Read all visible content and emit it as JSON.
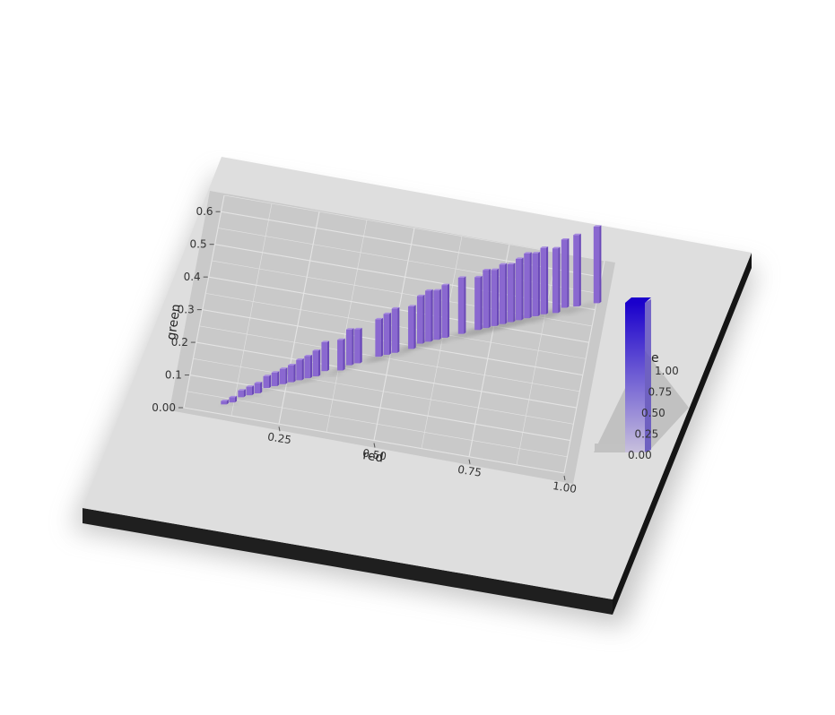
{
  "chart_data": {
    "type": "bar",
    "rendering": "3d",
    "xlabel": "red",
    "ylabel": "green",
    "legend_title": "e",
    "xlim": [
      0,
      1
    ],
    "ylim": [
      0,
      0.65
    ],
    "x_ticks": [
      "0.25",
      "0.50",
      "0.75",
      "1.00"
    ],
    "y_ticks": [
      "0.00",
      "0.1",
      "0.2",
      "0.3",
      "0.4",
      "0.5",
      "0.6"
    ],
    "legend_ticks": [
      "0.00",
      "0.25",
      "0.50",
      "0.75",
      "1.00"
    ],
    "legend_range": [
      0,
      1
    ],
    "legend_placement": "right",
    "grid": true,
    "colors": {
      "panel": "#c9c9c9",
      "plate": "#dedede",
      "plate_edge": "#1f1f1f",
      "bar": "#8a68d0",
      "bar_light": "#a88ce0",
      "bar_dark": "#6a48b8",
      "legend_low": "#c8c0dc",
      "legend_high": "#1a00cc"
    },
    "points": [
      {
        "x": 0.1,
        "y": 0.03,
        "value": 0.02
      },
      {
        "x": 0.12,
        "y": 0.04,
        "value": 0.03
      },
      {
        "x": 0.14,
        "y": 0.06,
        "value": 0.04
      },
      {
        "x": 0.16,
        "y": 0.07,
        "value": 0.05
      },
      {
        "x": 0.18,
        "y": 0.08,
        "value": 0.06
      },
      {
        "x": 0.2,
        "y": 0.1,
        "value": 0.07
      },
      {
        "x": 0.22,
        "y": 0.11,
        "value": 0.08
      },
      {
        "x": 0.24,
        "y": 0.12,
        "value": 0.09
      },
      {
        "x": 0.26,
        "y": 0.13,
        "value": 0.1
      },
      {
        "x": 0.28,
        "y": 0.14,
        "value": 0.12
      },
      {
        "x": 0.3,
        "y": 0.15,
        "value": 0.13
      },
      {
        "x": 0.32,
        "y": 0.16,
        "value": 0.15
      },
      {
        "x": 0.34,
        "y": 0.18,
        "value": 0.17
      },
      {
        "x": 0.38,
        "y": 0.19,
        "value": 0.18
      },
      {
        "x": 0.4,
        "y": 0.21,
        "value": 0.21
      },
      {
        "x": 0.42,
        "y": 0.22,
        "value": 0.2
      },
      {
        "x": 0.47,
        "y": 0.25,
        "value": 0.22
      },
      {
        "x": 0.49,
        "y": 0.26,
        "value": 0.24
      },
      {
        "x": 0.51,
        "y": 0.27,
        "value": 0.26
      },
      {
        "x": 0.55,
        "y": 0.29,
        "value": 0.25
      },
      {
        "x": 0.57,
        "y": 0.31,
        "value": 0.28
      },
      {
        "x": 0.59,
        "y": 0.32,
        "value": 0.3
      },
      {
        "x": 0.61,
        "y": 0.33,
        "value": 0.29
      },
      {
        "x": 0.63,
        "y": 0.34,
        "value": 0.31
      },
      {
        "x": 0.67,
        "y": 0.36,
        "value": 0.33
      },
      {
        "x": 0.71,
        "y": 0.38,
        "value": 0.31
      },
      {
        "x": 0.73,
        "y": 0.39,
        "value": 0.34
      },
      {
        "x": 0.75,
        "y": 0.4,
        "value": 0.33
      },
      {
        "x": 0.77,
        "y": 0.41,
        "value": 0.35
      },
      {
        "x": 0.79,
        "y": 0.42,
        "value": 0.34
      },
      {
        "x": 0.81,
        "y": 0.43,
        "value": 0.36
      },
      {
        "x": 0.83,
        "y": 0.44,
        "value": 0.38
      },
      {
        "x": 0.85,
        "y": 0.45,
        "value": 0.37
      },
      {
        "x": 0.87,
        "y": 0.46,
        "value": 0.39
      },
      {
        "x": 0.9,
        "y": 0.47,
        "value": 0.38
      },
      {
        "x": 0.92,
        "y": 0.49,
        "value": 0.4
      },
      {
        "x": 0.95,
        "y": 0.5,
        "value": 0.42
      },
      {
        "x": 1.0,
        "y": 0.52,
        "value": 0.45
      }
    ]
  }
}
